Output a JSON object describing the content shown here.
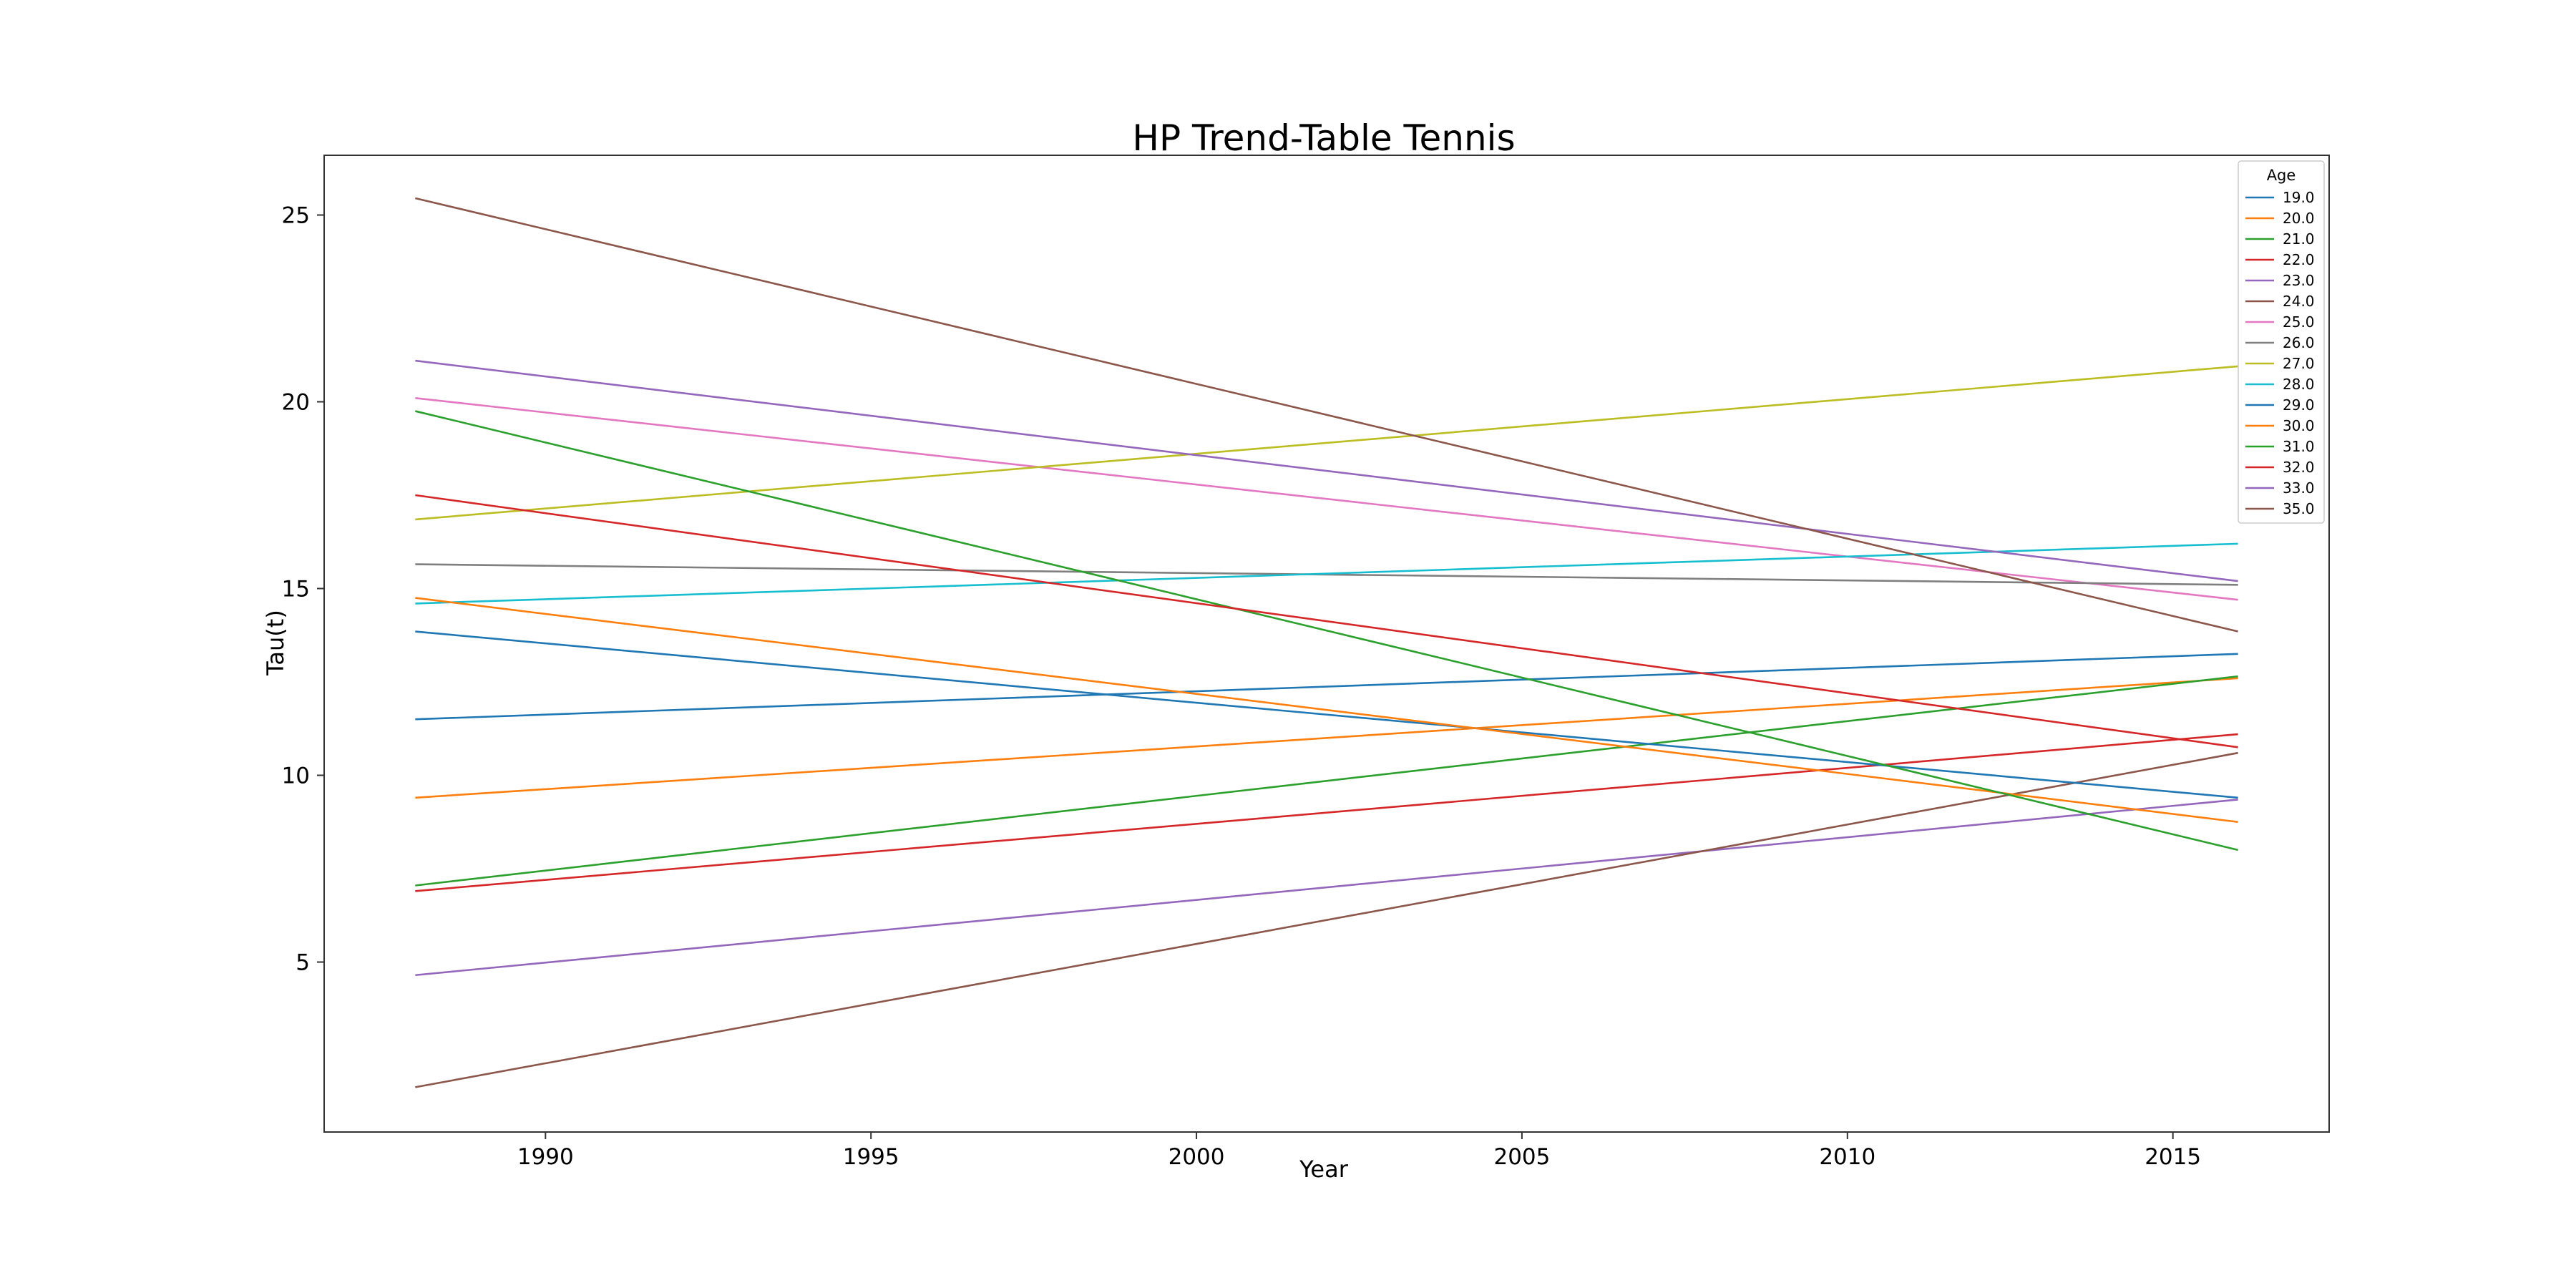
{
  "chart_data": {
    "type": "line",
    "title": "HP Trend-Table Tennis",
    "xlabel": "Year",
    "ylabel": "Tau(t)",
    "xlim": [
      1986.6,
      2017.4
    ],
    "ylim": [
      0.45,
      26.6
    ],
    "xticks": [
      1990,
      1995,
      2000,
      2005,
      2010,
      2015
    ],
    "yticks": [
      5,
      10,
      15,
      20,
      25
    ],
    "grid": false,
    "legend": {
      "title": "Age",
      "position": "top-right"
    },
    "series": [
      {
        "name": "19.0",
        "color": "#1f77b4",
        "x": [
          1988,
          2016
        ],
        "y": [
          11.5,
          13.25
        ]
      },
      {
        "name": "20.0",
        "color": "#ff7f0e",
        "x": [
          1988,
          2016
        ],
        "y": [
          9.4,
          12.6
        ]
      },
      {
        "name": "21.0",
        "color": "#2ca02c",
        "x": [
          1988,
          2016
        ],
        "y": [
          7.05,
          12.65
        ]
      },
      {
        "name": "22.0",
        "color": "#d62728",
        "x": [
          1988,
          2016
        ],
        "y": [
          6.9,
          11.1
        ]
      },
      {
        "name": "23.0",
        "color": "#9467bd",
        "x": [
          1988,
          2016
        ],
        "y": [
          4.65,
          9.35
        ]
      },
      {
        "name": "24.0",
        "color": "#8c564b",
        "x": [
          1988,
          2016
        ],
        "y": [
          1.65,
          10.6
        ]
      },
      {
        "name": "25.0",
        "color": "#e377c2",
        "x": [
          1988,
          2016
        ],
        "y": [
          20.1,
          14.7
        ]
      },
      {
        "name": "26.0",
        "color": "#7f7f7f",
        "x": [
          1988,
          2016
        ],
        "y": [
          15.65,
          15.1
        ]
      },
      {
        "name": "27.0",
        "color": "#bcbd22",
        "x": [
          1988,
          2016
        ],
        "y": [
          16.85,
          20.95
        ]
      },
      {
        "name": "28.0",
        "color": "#17becf",
        "x": [
          1988,
          2016
        ],
        "y": [
          14.6,
          16.2
        ]
      },
      {
        "name": "29.0",
        "color": "#1f77b4",
        "x": [
          1988,
          2016
        ],
        "y": [
          13.85,
          9.4
        ]
      },
      {
        "name": "30.0",
        "color": "#ff7f0e",
        "x": [
          1988,
          2016
        ],
        "y": [
          14.75,
          8.75
        ]
      },
      {
        "name": "31.0",
        "color": "#2ca02c",
        "x": [
          1988,
          2016
        ],
        "y": [
          19.75,
          8.0
        ]
      },
      {
        "name": "32.0",
        "color": "#d62728",
        "x": [
          1988,
          2016
        ],
        "y": [
          17.5,
          10.75
        ]
      },
      {
        "name": "33.0",
        "color": "#9467bd",
        "x": [
          1988,
          2016
        ],
        "y": [
          21.1,
          15.2
        ]
      },
      {
        "name": "35.0",
        "color": "#8c564b",
        "x": [
          1988,
          2016
        ],
        "y": [
          25.45,
          13.85
        ]
      }
    ]
  }
}
